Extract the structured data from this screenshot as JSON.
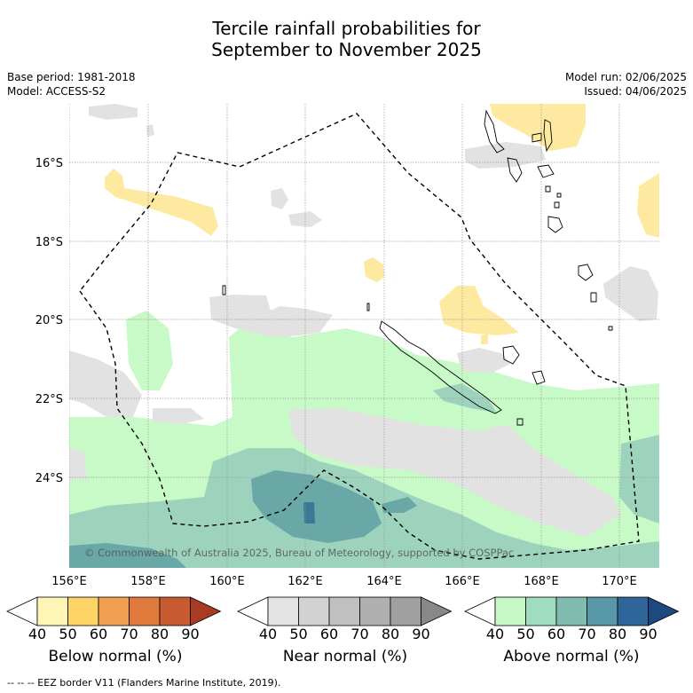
{
  "title_line1": "Tercile rainfall probabilities for",
  "title_line2": "September to November 2025",
  "meta": {
    "base_period": "Base period: 1981-2018",
    "model": "Model: ACCESS-S2",
    "model_run": "Model run: 02/06/2025",
    "issued": "Issued: 04/06/2025"
  },
  "map": {
    "lat_labels": [
      "16°S",
      "18°S",
      "20°S",
      "22°S",
      "24°S"
    ],
    "lon_labels": [
      "156°E",
      "158°E",
      "160°E",
      "162°E",
      "164°E",
      "166°E",
      "168°E",
      "170°E"
    ],
    "copyright": "© Commonwealth of Australia 2025, Bureau of Meteorology, supported by COSPPac"
  },
  "colorbars": [
    {
      "title": "Below normal (%)",
      "ticks": [
        "40",
        "50",
        "60",
        "70",
        "80",
        "90"
      ],
      "colors": [
        "#fff5b7",
        "#ffd466",
        "#f0a050",
        "#e07a3c",
        "#c85a30",
        "#a83c22"
      ]
    },
    {
      "title": "Near normal (%)",
      "ticks": [
        "40",
        "50",
        "60",
        "70",
        "80",
        "90"
      ],
      "colors": [
        "#e4e4e4",
        "#d2d2d2",
        "#c0c0c0",
        "#b0b0b0",
        "#a0a0a0",
        "#888888"
      ]
    },
    {
      "title": "Above normal (%)",
      "ticks": [
        "40",
        "50",
        "60",
        "70",
        "80",
        "90"
      ],
      "colors": [
        "#c8f8c8",
        "#a0dcc0",
        "#80bcb0",
        "#5898a8",
        "#2f6598",
        "#1c4a80"
      ]
    }
  ],
  "colors": {
    "below_50": "#fde9a0",
    "near_50": "#e2e2e2",
    "above_50": "#c8fac8",
    "above_60": "#9dd3bd",
    "above_70": "#6aa7a7",
    "above_80": "#3a7895"
  },
  "footer": "-- -- -- EEZ border V11 (Flanders Marine Institute, 2019)."
}
